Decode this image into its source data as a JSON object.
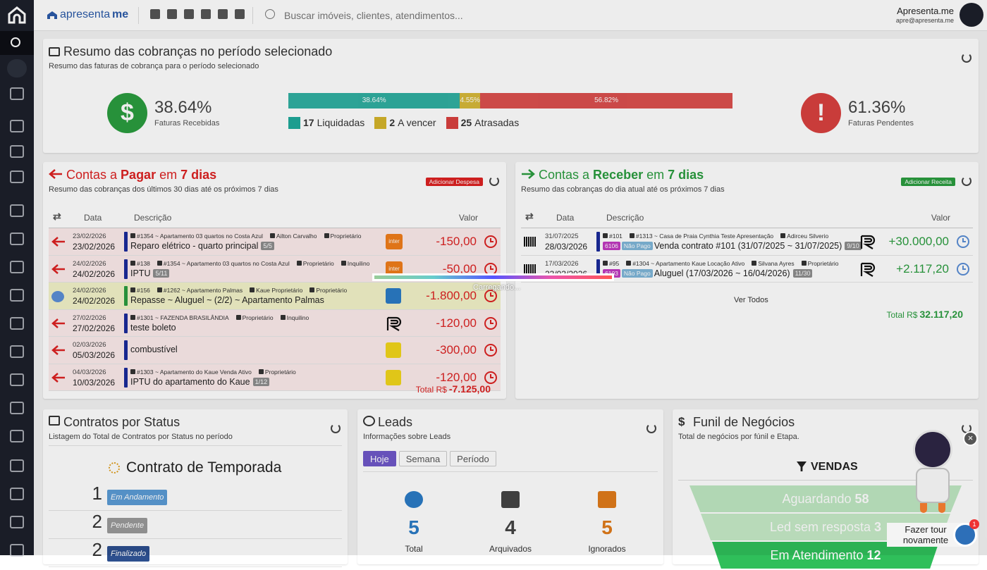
{
  "header": {
    "brand": "apresenta",
    "brand_suffix": "me",
    "search_placeholder": "Buscar imóveis, clientes, atendimentos...",
    "user_name": "Apresenta.me",
    "user_email": "apre@apresenta.me"
  },
  "summary": {
    "title": "Resumo das cobranças no período selecionado",
    "subtitle": "Resumo das faturas de cobrança para o período selecionado",
    "received": {
      "value": "38.64%",
      "label": "Faturas Recebidas"
    },
    "pending": {
      "value": "61.36%",
      "label": "Faturas Pendentes"
    },
    "bar": [
      {
        "value": 38.64,
        "label": "38.64%",
        "color": "#1fa99a"
      },
      {
        "value": 4.55,
        "label": "4.55%",
        "color": "#d4b42a"
      },
      {
        "value": 56.82,
        "label": "56.82%",
        "color": "#d9413f"
      }
    ],
    "legend": [
      {
        "count": "17",
        "label": "Liquidadas"
      },
      {
        "count": "2",
        "label": "A vencer"
      },
      {
        "count": "25",
        "label": "Atrasadas"
      }
    ]
  },
  "payables": {
    "title": [
      "Contas a",
      "Pagar",
      "em",
      "7 dias"
    ],
    "subtitle": "Resumo das cobranças dos últimos 30 dias até os próximos 7 dias",
    "button": "Adicionar Despesa",
    "columns": [
      "Data",
      "Descrição",
      "Valor"
    ],
    "rows": [
      {
        "date_due": "23/02/2026",
        "date_pay": "23/02/2026",
        "refs": [
          "#1354 ~ Apartamento 03 quartos no Costa Azul",
          "Ailton Carvalho",
          "Proprietário"
        ],
        "description": "Reparo elétrico - quarto principal",
        "badge": "5/5",
        "bank": "inter",
        "value": "-150,00"
      },
      {
        "date_due": "24/02/2026",
        "date_pay": "24/02/2026",
        "refs": [
          "#138",
          "#1354 ~ Apartamento 03 quartos no Costa Azul",
          "Proprietário",
          "Inquilino"
        ],
        "description": "IPTU",
        "badge": "5/11",
        "bank": "inter",
        "value": "-50,00"
      },
      {
        "date_due": "24/02/2026",
        "date_pay": "24/02/2026",
        "refs": [
          "#156",
          "#1262 ~ Apartamento Palmas",
          "Kaue Proprietário",
          "Proprietário"
        ],
        "description": "Repasse ~ Aluguel ~ (2/2) ~ Apartamento Palmas",
        "value": "-1.800,00"
      },
      {
        "date_due": "27/02/2026",
        "date_pay": "27/02/2026",
        "refs": [
          "#1301 ~ FAZENDA BRASILÂNDIA",
          "Proprietário",
          "Inquilino"
        ],
        "description": "teste boleto",
        "value": "-120,00"
      },
      {
        "date_due": "02/03/2026",
        "date_pay": "05/03/2026",
        "description": "combustível",
        "value": "-300,00"
      },
      {
        "date_due": "04/03/2026",
        "date_pay": "10/03/2026",
        "refs": [
          "#1303 ~ Apartamento do Kaue Venda Ativo",
          "Proprietário"
        ],
        "description": "IPTU do apartamento do Kaue",
        "badge": "1/12",
        "value": "-120,00"
      }
    ],
    "total_label": "Total R$",
    "total": "-7.125,00"
  },
  "receivables": {
    "title": [
      "Contas a",
      "Receber",
      "em",
      "7 dias"
    ],
    "subtitle": "Resumo das cobranças do dia atual até os próximos 7 dias",
    "button": "Adicionar Receita",
    "columns": [
      "Data",
      "Descrição",
      "Valor"
    ],
    "rows": [
      {
        "date_due": "31/07/2025",
        "date_pay": "28/03/2026",
        "refs": [
          "#101",
          "#1313 ~ Casa de Praia Cynthia Teste Apresentação",
          "Adirceu Silverio"
        ],
        "tags": [
          "6106",
          "Não Pago"
        ],
        "description": "Venda contrato #101 (31/07/2025 ~ 31/07/2025)",
        "badge": "9/10",
        "value": "+30.000,00"
      },
      {
        "date_due": "17/03/2026",
        "date_pay": "23/03/2026",
        "refs": [
          "#95",
          "#1304 ~ Apartamento Kaue Locação Ativo",
          "Silvana Ayres",
          "Proprietário"
        ],
        "tags": [
          "6103",
          "Não Pago"
        ],
        "description": "Aluguel (17/03/2026 ~ 16/04/2026)",
        "badge": "11/30",
        "value": "+2.117,20"
      }
    ],
    "see_all": "Ver Todos",
    "total_label": "Total R$",
    "total": "32.117,20"
  },
  "contracts": {
    "title": "Contratos por Status",
    "subtitle": "Listagem do Total de Contratos por Status no período",
    "group": "Contrato de Temporada",
    "rows": [
      {
        "count": "1",
        "status": "Em Andamento"
      },
      {
        "count": "2",
        "status": "Pendente"
      },
      {
        "count": "2",
        "status": "Finalizado"
      }
    ]
  },
  "leads": {
    "title": "Leads",
    "subtitle": "Informações sobre Leads",
    "tabs": [
      "Hoje",
      "Semana",
      "Período"
    ],
    "stats": [
      {
        "value": "5",
        "label": "Total"
      },
      {
        "value": "4",
        "label": "Arquivados"
      },
      {
        "value": "5",
        "label": "Ignorados"
      }
    ]
  },
  "funnel": {
    "title": "Funil de Negócios",
    "subtitle": "Total de negócios por fúnil e Etapa.",
    "pipeline": "VENDAS",
    "stages": [
      {
        "name": "Aguardando",
        "count": "58"
      },
      {
        "name": "Led sem resposta",
        "count": "3"
      },
      {
        "name": "Em Atendimento",
        "count": "12"
      }
    ]
  },
  "tour": {
    "label": "Fazer tour novamente",
    "badge": "1"
  },
  "loading": "Carregando..."
}
